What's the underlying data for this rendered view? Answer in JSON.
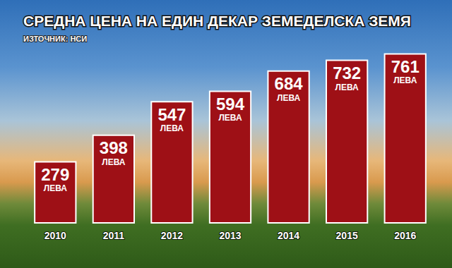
{
  "chart_data": {
    "type": "bar",
    "title": "СРЕДНА ЦЕНА НА ЕДИН ДЕКАР ЗЕМЕДЕЛСКА ЗЕМЯ",
    "subtitle": "ИЗТОЧНИК: НСИ",
    "categories": [
      "2010",
      "2011",
      "2012",
      "2013",
      "2014",
      "2015",
      "2016"
    ],
    "values": [
      279,
      398,
      547,
      594,
      684,
      732,
      761
    ],
    "value_labels": [
      "279\nЛЕВА",
      "398\nЛЕВА",
      "547\nЛЕВА",
      "594\nЛЕВА",
      "684\nЛЕВА",
      "732\nЛЕВА",
      "761\nЛЕВА"
    ],
    "color": "#9e1016",
    "ylim": [
      0,
      800
    ],
    "yticks": [
      0,
      800
    ],
    "grid": false,
    "data_labels": true,
    "tick_labels": "x"
  }
}
